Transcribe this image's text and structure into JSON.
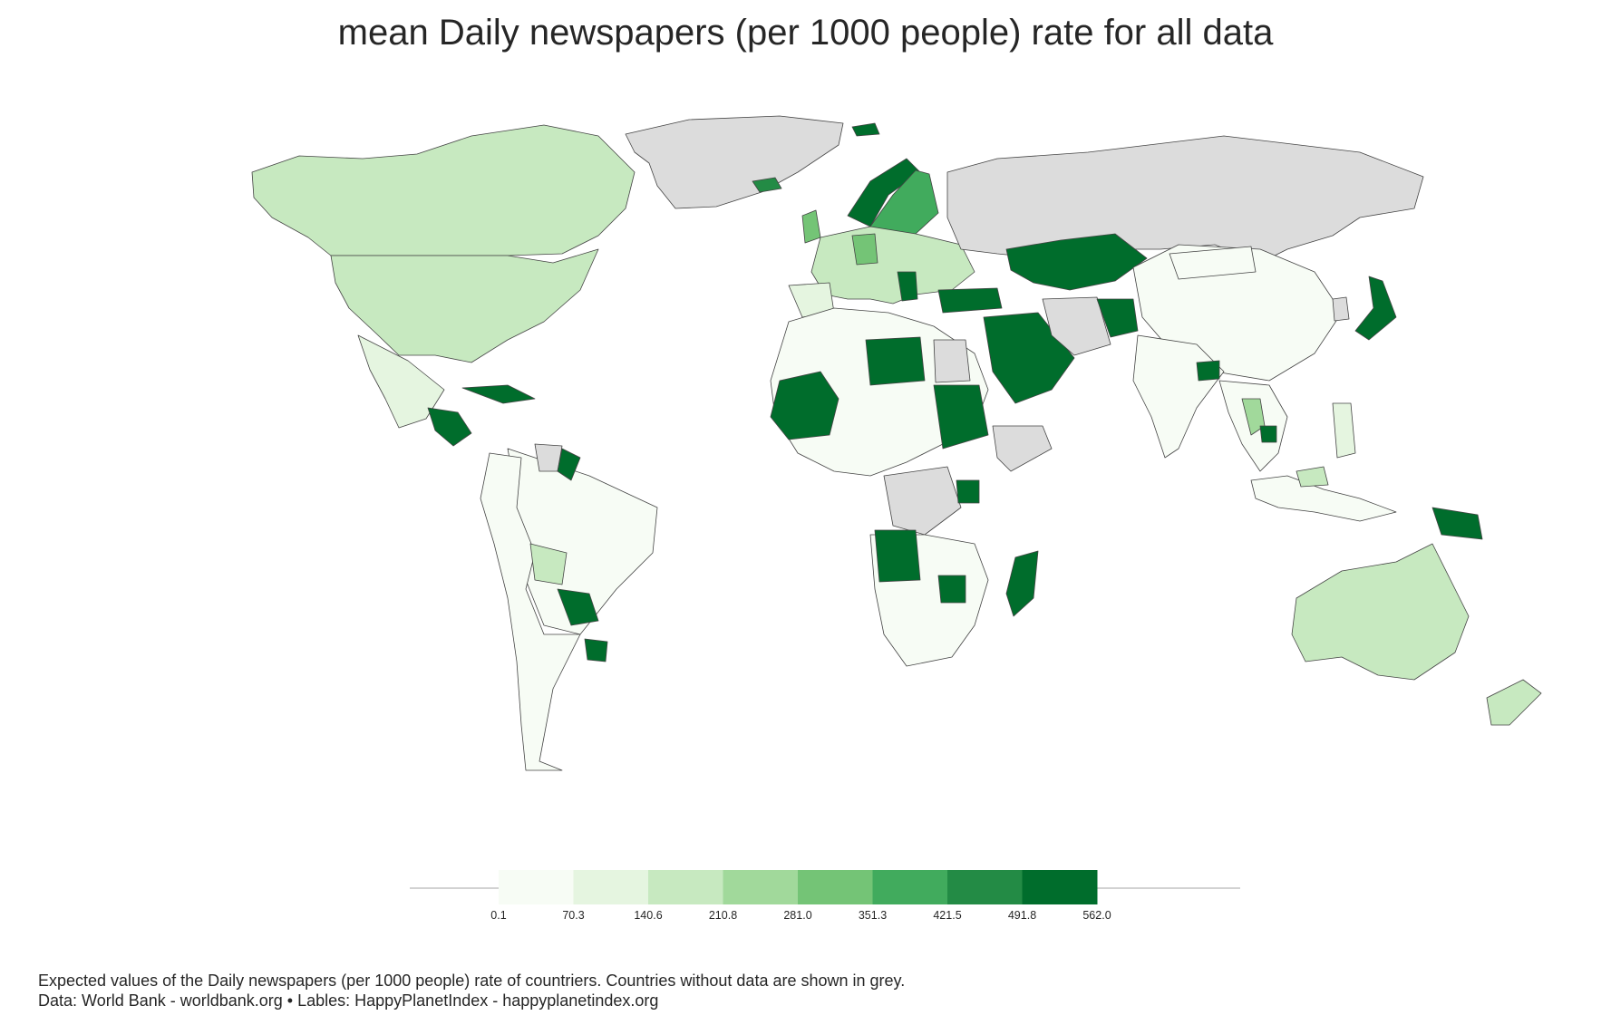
{
  "title": "mean Daily newspapers (per 1000 people) rate for all data",
  "legend": {
    "ticks": [
      "0.1",
      "70.3",
      "140.6",
      "210.8",
      "281.0",
      "351.3",
      "421.5",
      "491.8",
      "562.0"
    ],
    "colors": [
      "#f7fcf5",
      "#e5f5e0",
      "#c7e9c0",
      "#a1d99b",
      "#74c476",
      "#41ab5d",
      "#238b45",
      "#006d2c"
    ]
  },
  "no_data_color": "#dcdcdc",
  "caption": {
    "line1": "Expected values of the Daily newspapers (per 1000 people) rate of countriers. Countries without data are shown in grey.",
    "line2": "Data: World Bank - worldbank.org • Lables: HappyPlanetIndex - happyplanetindex.org"
  }
}
